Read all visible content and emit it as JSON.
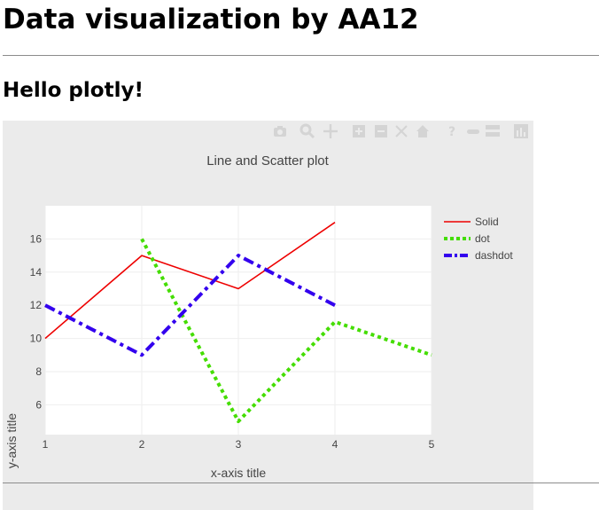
{
  "page": {
    "title": "Data visualization by AA12",
    "subtitle": "Hello plotly!"
  },
  "toolbar": {
    "buttons": [
      "camera-icon",
      "zoom-icon",
      "pan-icon",
      "zoom-in-icon",
      "zoom-out-icon",
      "autoscale-icon",
      "home-icon",
      "hover-question-icon",
      "spike-lines-icon",
      "compare-hover-icon",
      "plotly-logo-icon"
    ]
  },
  "colors": {
    "panel_background": "#ebebeb",
    "plot_background": "#ffffff",
    "toolbar_icon": "#d4d4d4"
  },
  "chart_data": {
    "type": "line",
    "title": "Line and Scatter plot",
    "xlabel": "x-axis title",
    "ylabel": "y-axis title",
    "xlim": [
      1,
      5
    ],
    "ylim": [
      4.2,
      18
    ],
    "xticks": [
      1,
      2,
      3,
      4,
      5
    ],
    "yticks": [
      6,
      8,
      10,
      12,
      14,
      16
    ],
    "grid": true,
    "legend_position": "top-right",
    "series": [
      {
        "name": "Solid",
        "x": [
          1,
          2,
          3,
          4
        ],
        "y": [
          10,
          15,
          13,
          17
        ],
        "color": "#ee0000",
        "dash": "solid",
        "width": 1.6
      },
      {
        "name": "dot",
        "x": [
          2,
          3,
          4,
          5
        ],
        "y": [
          16,
          5,
          11,
          9
        ],
        "color": "#44dd00",
        "dash": "dot",
        "width": 4
      },
      {
        "name": "dashdot",
        "x": [
          1,
          2,
          3,
          4
        ],
        "y": [
          12,
          9,
          15,
          12
        ],
        "color": "#3300ee",
        "dash": "dashdot",
        "width": 4
      }
    ]
  }
}
